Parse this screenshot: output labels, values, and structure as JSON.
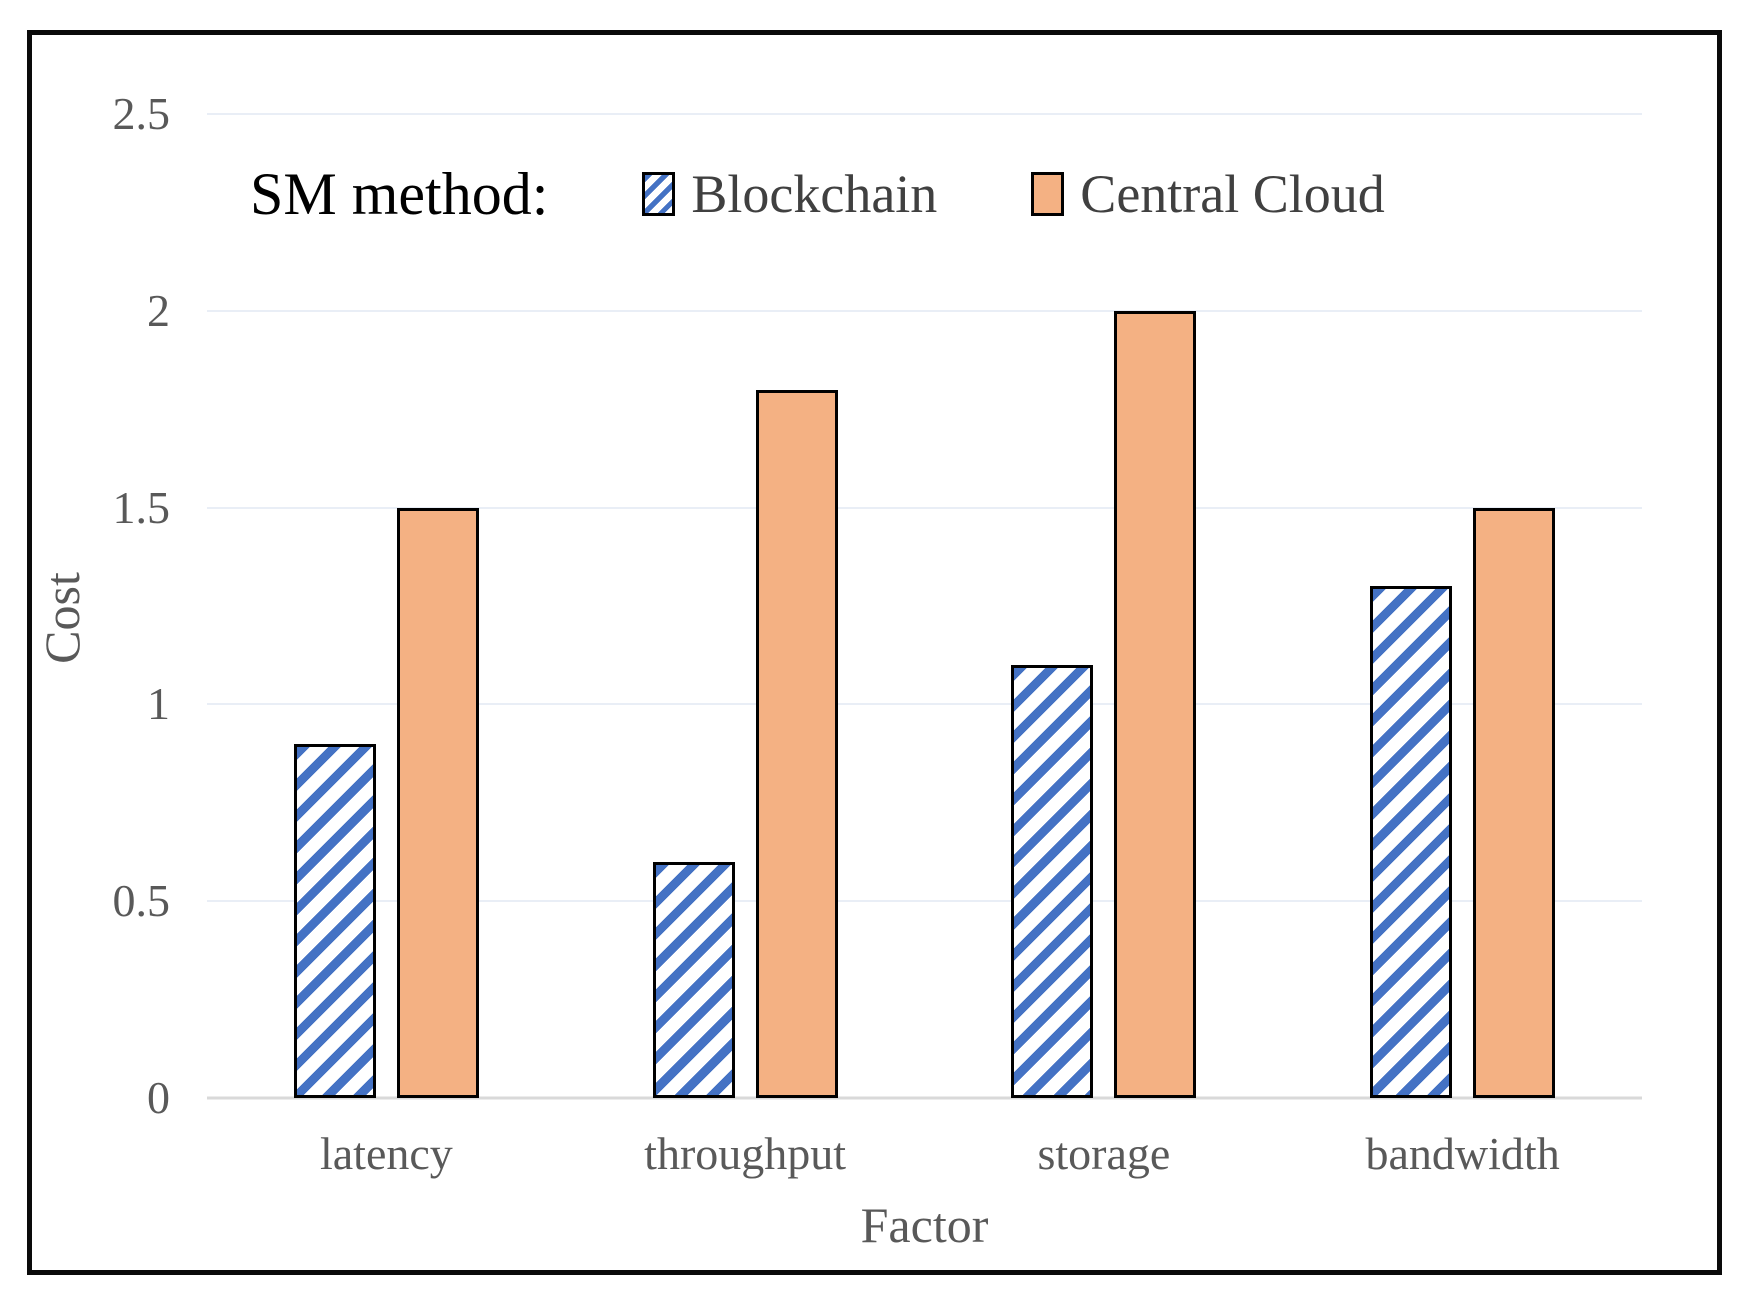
{
  "figure": {
    "legend_title": "SM method:",
    "y_axis_title": "Cost",
    "x_axis_title": "Factor"
  },
  "chart_data": {
    "type": "bar",
    "title": "",
    "categories": [
      "latency",
      "throughput",
      "storage",
      "bandwidth"
    ],
    "series": [
      {
        "name": "Blockchain",
        "values": [
          0.9,
          0.6,
          1.1,
          1.3
        ],
        "fill": "hatched-blue",
        "color": "#4472C4"
      },
      {
        "name": "Central Cloud",
        "values": [
          1.5,
          1.8,
          2.0,
          1.5
        ],
        "fill": "solid",
        "color": "#F4B183"
      }
    ],
    "xlabel": "Factor",
    "ylabel": "Cost",
    "ylim": [
      0,
      2.5
    ],
    "yticks": [
      0,
      0.5,
      1,
      1.5,
      2,
      2.5
    ],
    "grid": true,
    "legend_position": "top-inside",
    "styling": {
      "gridline_color": "#e9eef6",
      "baseline_color": "#d9d9d9",
      "bar_border_color": "#000000",
      "axis_text_color": "#595959",
      "frame_border_color": "#0a0a0a"
    }
  }
}
